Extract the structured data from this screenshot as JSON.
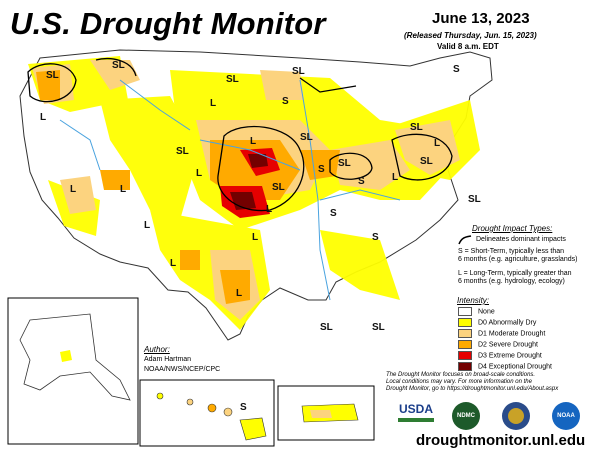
{
  "header": {
    "title": "U.S. Drought Monitor",
    "date": "June 13, 2023",
    "released": "(Released Thursday, Jun. 15, 2023)",
    "valid": "Valid 8 a.m. EDT"
  },
  "map_labels": [
    "SL",
    "SL",
    "S",
    "S",
    "L",
    "L",
    "L",
    "L",
    "L",
    "L",
    "L",
    "L",
    "L",
    "L",
    "S",
    "S",
    "SL",
    "SL",
    "SL",
    "SL",
    "SL",
    "SL",
    "SL",
    "SL",
    "L",
    "SL",
    "SL",
    "L",
    "L",
    "S",
    "S",
    "SL",
    "S"
  ],
  "impact_types": {
    "title": "Drought Impact Types:",
    "delineates": "Delineates dominant impacts",
    "short_term_1": "S = Short-Term, typically less than",
    "short_term_2": "6 months (e.g. agriculture, grasslands)",
    "long_term_1": "L = Long-Term, typically greater than",
    "long_term_2": "6 months (e.g. hydrology, ecology)"
  },
  "intensity": {
    "title": "Intensity:",
    "levels": [
      {
        "label": "None",
        "color": "#ffffff"
      },
      {
        "label": "D0 Abnormally Dry",
        "color": "#ffff00"
      },
      {
        "label": "D1 Moderate Drought",
        "color": "#fcd37f"
      },
      {
        "label": "D2 Severe Drought",
        "color": "#ffaa00"
      },
      {
        "label": "D3 Extreme Drought",
        "color": "#e60000"
      },
      {
        "label": "D4 Exceptional Drought",
        "color": "#730000"
      }
    ]
  },
  "author": {
    "title": "Author:",
    "name": "Adam Hartman",
    "org": "NOAA/NWS/NCEP/CPC"
  },
  "note": {
    "line1": "The Drought Monitor focuses on broad-scale conditions.",
    "line2": "Local conditions may vary. For more information on the",
    "line3": "Drought Monitor, go to https://droughtmonitor.unl.edu/About.aspx"
  },
  "logos": {
    "usda": "USDA",
    "ndmc": "NDMC",
    "noaa": "NOAA"
  },
  "url": "droughtmonitor.unl.edu",
  "colors": {
    "d0": "#ffff00",
    "d1": "#fcd37f",
    "d2": "#ffaa00",
    "d3": "#e60000",
    "d4": "#730000",
    "water": "#4aa3df"
  }
}
